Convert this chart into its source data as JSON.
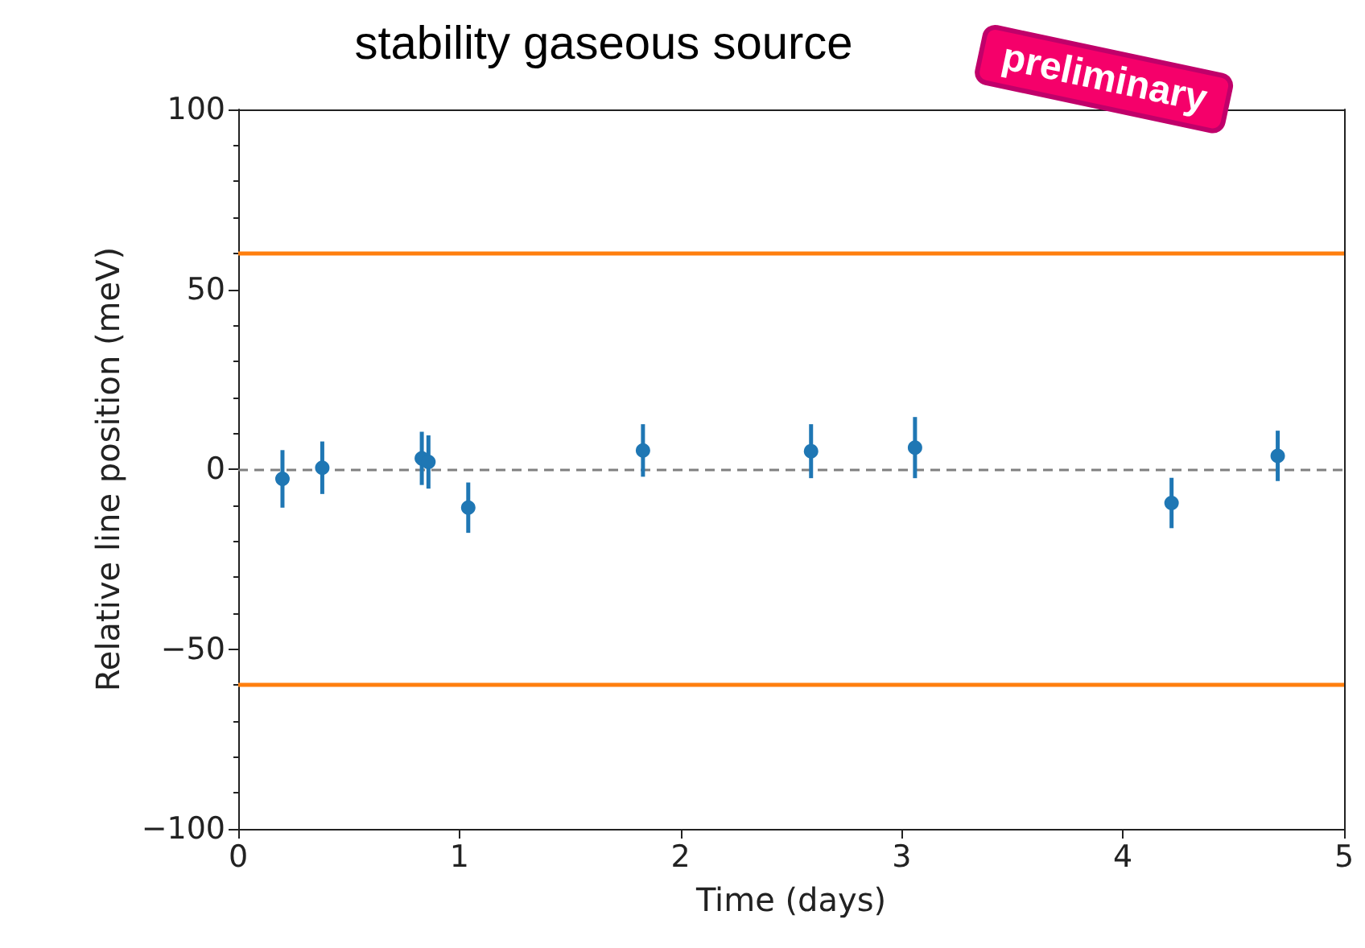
{
  "chart_data": {
    "type": "scatter",
    "title": "stability gaseous source",
    "xlabel": "Time (days)",
    "ylabel": "Relative line position (meV)",
    "x": [
      0.2,
      0.38,
      0.83,
      0.86,
      1.04,
      1.83,
      2.59,
      3.06,
      4.22,
      4.7
    ],
    "values": [
      -2.7,
      0.4,
      3,
      2,
      -10.7,
      5.2,
      5,
      6,
      -9.4,
      3.7
    ],
    "errors": [
      8,
      7.3,
      7.4,
      7.4,
      7,
      7.3,
      7.5,
      8.5,
      7,
      7
    ],
    "color": "#1f77b4",
    "marker": "circle",
    "xlim": [
      0,
      5
    ],
    "xticks": [
      0,
      1,
      2,
      3,
      4,
      5
    ],
    "ylim": [
      -100,
      100
    ],
    "yticks": [
      {
        "value": -100,
        "label": "−100"
      },
      {
        "value": -50,
        "label": "−50"
      },
      0,
      50,
      100
    ],
    "ref_lines": [
      {
        "axis": "y",
        "value": 0,
        "color": "#808080",
        "line_style": "dashed"
      },
      {
        "axis": "y",
        "value": 60,
        "color": "#ff7f0e",
        "line_style": "solid"
      },
      {
        "axis": "y",
        "value": -60,
        "color": "#ff7f0e",
        "line_style": "solid"
      }
    ],
    "grid": false,
    "annotations": [
      "preliminary"
    ]
  }
}
